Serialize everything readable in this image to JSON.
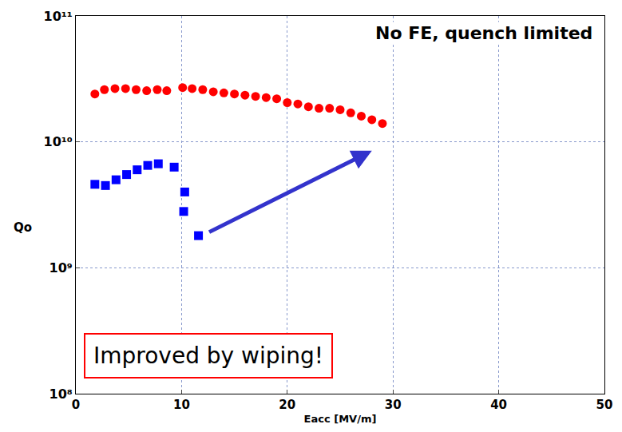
{
  "chart_data": {
    "type": "scatter",
    "x_label": "Eacc [MV/m]",
    "y_label": "Qo",
    "annotations": [
      "No FE, quench limited",
      "Improved by wiping!"
    ],
    "log": "y",
    "grid": true,
    "xlim": [
      0,
      50
    ],
    "xticks": [
      0,
      10,
      20,
      30,
      40,
      50
    ],
    "ylim": [
      100000000,
      100000000000
    ],
    "yticks": [
      {
        "value": 100000000,
        "label": "10⁸"
      },
      {
        "value": 1000000000,
        "label": "10⁹"
      },
      {
        "value": 10000000000,
        "label": "10¹⁰"
      },
      {
        "value": 100000000000,
        "label": "10¹¹"
      }
    ],
    "series": [
      {
        "color": "#ff0000",
        "marker": "circle",
        "x": [
          1.8,
          2.7,
          3.7,
          4.7,
          5.7,
          6.7,
          7.7,
          8.6,
          10.1,
          11.0,
          12.0,
          13.0,
          14.0,
          15.0,
          16.0,
          17.0,
          18.0,
          19.0,
          20.0,
          21.0,
          22.0,
          23.0,
          24.0,
          25.0,
          26.0,
          27.0,
          28.0,
          29.0
        ],
        "values": [
          24000000000,
          26000000000,
          26500000000,
          26500000000,
          26000000000,
          25500000000,
          26000000000,
          25500000000,
          27000000000,
          26500000000,
          26000000000,
          25000000000,
          24500000000,
          24000000000,
          23500000000,
          23000000000,
          22500000000,
          22000000000,
          20500000000,
          20000000000,
          19000000000,
          18500000000,
          18500000000,
          18000000000,
          17000000000,
          16000000000,
          15000000000,
          14000000000
        ]
      },
      {
        "color": "#0000ff",
        "marker": "square",
        "x": [
          1.8,
          2.8,
          3.8,
          4.8,
          5.8,
          6.8,
          7.8,
          9.3,
          10.3,
          10.2,
          11.6
        ],
        "values": [
          4600000000,
          4500000000,
          5000000000,
          5500000000,
          6000000000,
          6500000000,
          6700000000,
          6300000000,
          4000000000,
          2800000000,
          1800000000
        ]
      }
    ]
  }
}
